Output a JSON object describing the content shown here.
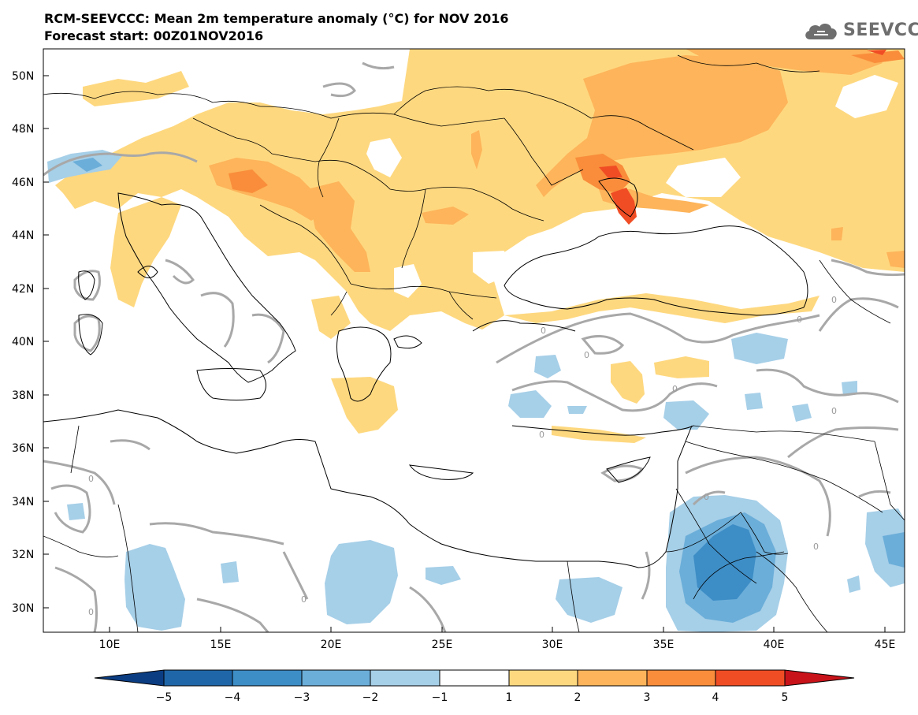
{
  "header": {
    "title": "RCM-SEEVCCC: Mean 2m temperature anomaly (°C) for NOV 2016",
    "subtitle": "Forecast start: 00Z01NOV2016"
  },
  "logo": {
    "text": "SEEVCCC",
    "icon": "cloud-icon"
  },
  "map": {
    "lat_ticks": [
      "50N",
      "48N",
      "46N",
      "44N",
      "42N",
      "40N",
      "38N",
      "36N",
      "34N",
      "32N",
      "30N"
    ],
    "lon_ticks": [
      "10E",
      "15E",
      "20E",
      "25E",
      "30E",
      "35E",
      "40E",
      "45E"
    ],
    "contour_label": "0"
  },
  "colorbar": {
    "colors": [
      "#0b3d82",
      "#1f66a8",
      "#3d8dc6",
      "#6baed9",
      "#a6cfe8",
      "#ffffff",
      "#fed87f",
      "#fdb45a",
      "#f98d3b",
      "#f04d25",
      "#c8131a"
    ],
    "labels": [
      "−5",
      "−4",
      "−3",
      "−2",
      "−1",
      "1",
      "2",
      "3",
      "4",
      "5"
    ]
  }
}
